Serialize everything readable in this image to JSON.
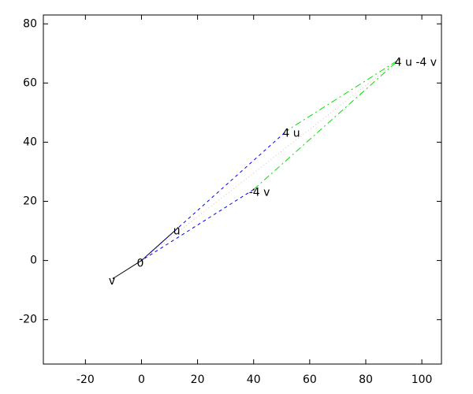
{
  "chart_data": {
    "type": "vector",
    "xlim": [
      -35,
      107
    ],
    "ylim": [
      -35,
      83
    ],
    "xticks": [
      -20,
      0,
      20,
      40,
      60,
      80,
      100
    ],
    "yticks": [
      -20,
      0,
      20,
      40,
      60,
      80
    ],
    "series": [
      {
        "color": "#000000",
        "style": "solid",
        "x": [
          -10,
          0,
          13
        ],
        "y": [
          -6,
          0,
          11
        ]
      },
      {
        "color": "#0000ff",
        "style": "dashed",
        "x": [
          40,
          0,
          52
        ],
        "y": [
          24,
          0,
          44
        ]
      },
      {
        "color": "#00e000",
        "style": "dashdot",
        "x": [
          40,
          92,
          52
        ],
        "y": [
          24,
          68,
          44
        ]
      },
      {
        "color": "#f0b8b8",
        "style": "dotted",
        "x": [
          0,
          92
        ],
        "y": [
          0,
          68
        ]
      }
    ],
    "annotations": [
      {
        "text": "0",
        "x": 0,
        "y": 0
      },
      {
        "text": "u",
        "x": 13,
        "y": 11
      },
      {
        "text": "v",
        "x": -10,
        "y": -6
      },
      {
        "text": "4 u",
        "x": 52,
        "y": 44
      },
      {
        "text": "-4 v",
        "x": 40,
        "y": 24
      },
      {
        "text": "4 u -4 v",
        "x": 92,
        "y": 68
      }
    ]
  }
}
